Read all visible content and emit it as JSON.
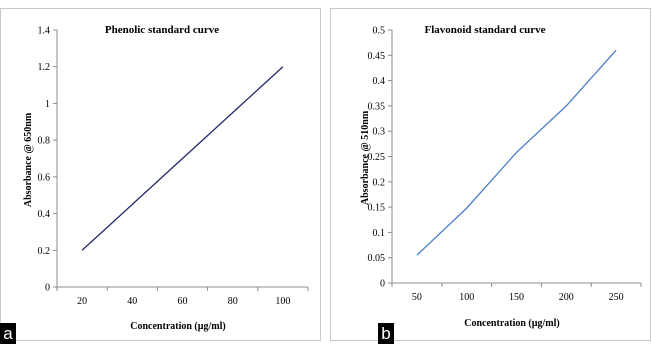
{
  "panels": [
    {
      "tag": "a",
      "chart_data": {
        "type": "line",
        "title": "Phenolic standard curve",
        "xlabel": "Concentration (µg/ml)",
        "ylabel": "Absorbance @ 650nm",
        "x_ticks": [
          20,
          40,
          60,
          80,
          100
        ],
        "y_ticks": [
          0,
          0.2,
          0.4,
          0.6,
          0.8,
          1,
          1.2,
          1.4
        ],
        "xlim": [
          10,
          110
        ],
        "ylim": [
          0,
          1.4
        ],
        "series": [
          {
            "x": [
              20,
              40,
              60,
              80,
              100
            ],
            "y": [
              0.2,
              0.45,
              0.7,
              0.95,
              1.2
            ],
            "color": "#1f2a6b"
          }
        ]
      }
    },
    {
      "tag": "b",
      "chart_data": {
        "type": "line",
        "title": "Flavonoid standard curve",
        "xlabel": "Concentration (µg/ml)",
        "ylabel": "Absorbance @ 510nm",
        "x_ticks": [
          50,
          100,
          150,
          200,
          250
        ],
        "y_ticks": [
          0,
          0.05,
          0.1,
          0.15,
          0.2,
          0.25,
          0.3,
          0.35,
          0.4,
          0.45,
          0.5
        ],
        "xlim": [
          25,
          275
        ],
        "ylim": [
          0,
          0.5
        ],
        "series": [
          {
            "x": [
              50,
              100,
              150,
              200,
              250
            ],
            "y": [
              0.055,
              0.148,
              0.258,
              0.35,
              0.46
            ],
            "color": "#4a7ec9"
          }
        ]
      }
    }
  ]
}
